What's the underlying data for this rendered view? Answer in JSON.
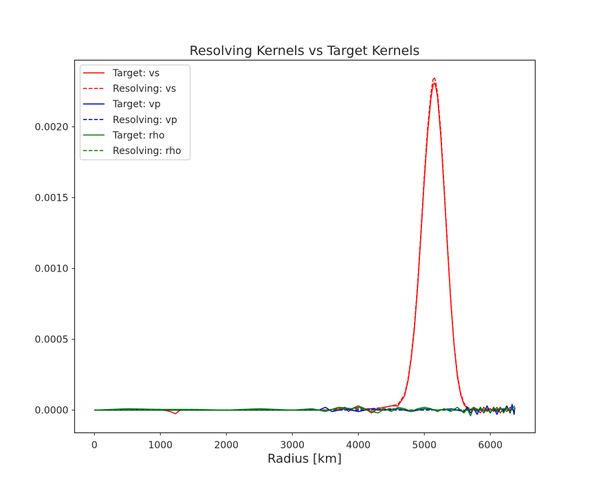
{
  "chart_data": {
    "type": "line",
    "title": "Resolving Kernels vs Target Kernels",
    "xlabel": "Radius [km]",
    "ylabel": "",
    "xlim": [
      -300,
      6680
    ],
    "ylim": [
      -0.00016,
      0.00247
    ],
    "xticks": [
      0,
      1000,
      2000,
      3000,
      4000,
      5000,
      6000
    ],
    "xtick_labels": [
      "0",
      "1000",
      "2000",
      "3000",
      "4000",
      "5000",
      "6000"
    ],
    "yticks": [
      0.0,
      0.0005,
      0.001,
      0.0015,
      0.002
    ],
    "ytick_labels": [
      "0.0000",
      "0.0005",
      "0.0010",
      "0.0015",
      "0.0020"
    ],
    "grid": false,
    "legend_position": "upper-left",
    "series": [
      {
        "name": "Target: vs",
        "color": "#ff0000",
        "style": "solid",
        "x": [
          0,
          500,
          1000,
          1150,
          1200,
          1230,
          1300,
          2000,
          3000,
          3500,
          3700,
          3800,
          3850,
          3900,
          4000,
          4100,
          4200,
          4300,
          4400,
          4500,
          4600,
          4700,
          4750,
          4800,
          4850,
          4900,
          4950,
          5000,
          5050,
          5100,
          5130,
          5150,
          5170,
          5200,
          5250,
          5300,
          5350,
          5400,
          5450,
          5500,
          5550,
          5600,
          5650,
          5700,
          5750,
          5800,
          5850,
          5900,
          5950,
          6000,
          6050,
          6100,
          6150,
          6200,
          6250,
          6300,
          6371
        ],
        "y": [
          0.0,
          0.0,
          5e-06,
          -1e-05,
          -2e-05,
          -2.5e-05,
          0.0,
          0.0,
          0.0,
          0.0,
          1e-05,
          2e-05,
          -1e-05,
          1e-05,
          2e-05,
          1e-05,
          -2e-05,
          1e-05,
          2e-05,
          3e-05,
          3e-05,
          0.0001,
          0.0002,
          0.00036,
          0.00058,
          0.00088,
          0.00125,
          0.00163,
          0.00196,
          0.0022,
          0.00229,
          0.00231,
          0.00229,
          0.00221,
          0.00193,
          0.00155,
          0.00115,
          0.00077,
          0.00046,
          0.00024,
          0.00011,
          4e-05,
          1e-05,
          5e-06,
          2e-05,
          5e-06,
          -2e-05,
          2e-05,
          -1e-05,
          1e-05,
          -1e-05,
          2e-05,
          -2e-05,
          1e-05,
          -1e-05,
          2e-05,
          -1e-05
        ]
      },
      {
        "name": "Resolving: vs",
        "color": "#ff0000",
        "style": "dashed",
        "x": [
          0,
          500,
          1000,
          1200,
          1300,
          2000,
          3000,
          3500,
          3800,
          4000,
          4200,
          4400,
          4500,
          4600,
          4700,
          4750,
          4800,
          4850,
          4900,
          4950,
          5000,
          5050,
          5100,
          5130,
          5150,
          5170,
          5200,
          5250,
          5300,
          5350,
          5400,
          5450,
          5500,
          5550,
          5600,
          5650,
          5700,
          5800,
          5900,
          6000,
          6100,
          6200,
          6300,
          6371
        ],
        "y": [
          0.0,
          0.0,
          0.0,
          0.0,
          0.0,
          0.0,
          0.0,
          0.0,
          1e-05,
          1e-05,
          1e-05,
          2e-05,
          3e-05,
          4e-05,
          0.00011,
          0.00021,
          0.00037,
          0.0006,
          0.0009,
          0.00127,
          0.00166,
          0.00199,
          0.00224,
          0.00233,
          0.00235,
          0.00232,
          0.00224,
          0.00196,
          0.00157,
          0.00117,
          0.00078,
          0.00047,
          0.00025,
          0.00012,
          5e-05,
          2e-05,
          1e-05,
          0.0,
          0.0,
          1e-05,
          0.0,
          1e-05,
          0.0,
          0.0
        ]
      },
      {
        "name": "Target: vp",
        "color": "#0000cc",
        "style": "solid",
        "x": [
          0,
          1000,
          2000,
          3000,
          3400,
          3500,
          3600,
          3800,
          4000,
          4200,
          4400,
          4600,
          4800,
          5000,
          5200,
          5400,
          5600,
          5650,
          5700,
          5750,
          5800,
          5850,
          5900,
          5950,
          6000,
          6050,
          6100,
          6150,
          6200,
          6250,
          6300,
          6330,
          6360,
          6371
        ],
        "y": [
          0.0,
          0.0,
          0.0,
          0.0,
          0.0,
          2e-05,
          -1e-05,
          1e-05,
          -1e-05,
          1e-05,
          0.0,
          1e-05,
          -1e-05,
          1e-05,
          0.0,
          1e-05,
          -1e-05,
          2e-05,
          -2e-05,
          1e-05,
          -3e-05,
          2e-05,
          -2e-05,
          3e-05,
          -2e-05,
          2e-05,
          -3e-05,
          2e-05,
          -1e-05,
          3e-05,
          -2e-05,
          4e-05,
          -3e-05,
          2e-05
        ]
      },
      {
        "name": "Resolving: vp",
        "color": "#0000cc",
        "style": "dashed",
        "x": [
          0,
          1000,
          2000,
          3000,
          4000,
          5000,
          5500,
          6000,
          6371
        ],
        "y": [
          0.0,
          0.0,
          0.0,
          0.0,
          0.0,
          0.0,
          0.0,
          0.0,
          0.0
        ]
      },
      {
        "name": "Target: rho",
        "color": "#008000",
        "style": "solid",
        "x": [
          0,
          500,
          1000,
          1500,
          2000,
          2500,
          3000,
          3300,
          3500,
          3700,
          3900,
          4000,
          4100,
          4200,
          4300,
          4400,
          4500,
          4600,
          4700,
          4800,
          4900,
          5000,
          5100,
          5200,
          5300,
          5400,
          5500,
          5600,
          5650,
          5700,
          5750,
          5800,
          5850,
          5900,
          5950,
          6000,
          6050,
          6100,
          6150,
          6200,
          6250,
          6300,
          6350,
          6371
        ],
        "y": [
          0.0,
          1e-05,
          5e-06,
          5e-06,
          0.0,
          1e-05,
          0.0,
          1e-05,
          -1e-05,
          2e-05,
          1e-05,
          3e-05,
          1e-05,
          -1e-05,
          -2e-05,
          1e-05,
          -1e-05,
          2e-05,
          1e-05,
          -1e-05,
          1e-05,
          2e-05,
          1e-05,
          -1e-05,
          1e-05,
          -1e-05,
          2e-05,
          -2e-05,
          1e-05,
          -4e-05,
          2e-05,
          -1e-05,
          2e-05,
          -2e-05,
          1e-05,
          -2e-05,
          2e-05,
          -1e-05,
          2e-05,
          -2e-05,
          2e-05,
          -1e-05,
          2e-05,
          3e-05
        ]
      },
      {
        "name": "Resolving: rho",
        "color": "#008000",
        "style": "dashed",
        "x": [
          0,
          1000,
          2000,
          3000,
          3600,
          3800,
          4000,
          4200,
          4400,
          4600,
          4800,
          5000,
          5200,
          5400,
          5600,
          5800,
          6000,
          6200,
          6371
        ],
        "y": [
          0.0,
          0.0,
          0.0,
          0.0,
          0.0,
          1e-05,
          1e-05,
          0.0,
          1e-05,
          1e-05,
          0.0,
          1e-05,
          0.0,
          1e-05,
          0.0,
          1e-05,
          0.0,
          1e-05,
          0.0
        ]
      }
    ]
  }
}
